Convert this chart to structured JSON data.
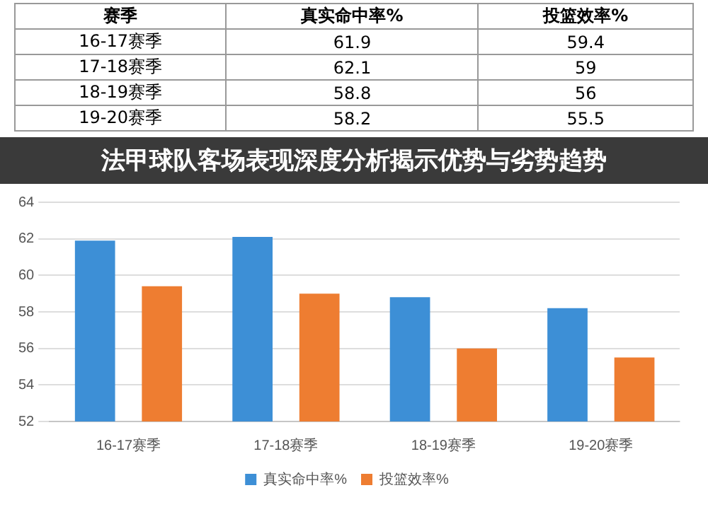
{
  "chart_data": [
    {
      "type": "other",
      "annotations": [
        "赛季"
      ],
      "data_labels": true,
      "categories": [
        "16-17赛季",
        "17-18赛季",
        "18-19赛季",
        "19-20赛季"
      ],
      "series": [
        {
          "name": "真实命中率%",
          "values": [
            61.9,
            62.1,
            58.8,
            58.2
          ]
        },
        {
          "name": "投篮效率%",
          "values": [
            59.4,
            59,
            56,
            55.5
          ]
        }
      ]
    },
    {
      "type": "bar",
      "title": "法甲球队客场表现深度分析揭示优势与劣势趋势",
      "categories": [
        "16-17赛季",
        "17-18赛季",
        "18-19赛季",
        "19-20赛季"
      ],
      "series": [
        {
          "name": "真实命中率%",
          "color": "#3d8fd6",
          "values": [
            61.9,
            62.1,
            58.8,
            58.2
          ]
        },
        {
          "name": "投篮效率%",
          "color": "#ee7d31",
          "values": [
            59.4,
            59,
            56,
            55.5
          ]
        }
      ],
      "ylim": [
        52,
        64
      ],
      "yticks": [
        52,
        54,
        56,
        58,
        60,
        62,
        64
      ],
      "grid": "y",
      "legend": "bottom"
    }
  ]
}
